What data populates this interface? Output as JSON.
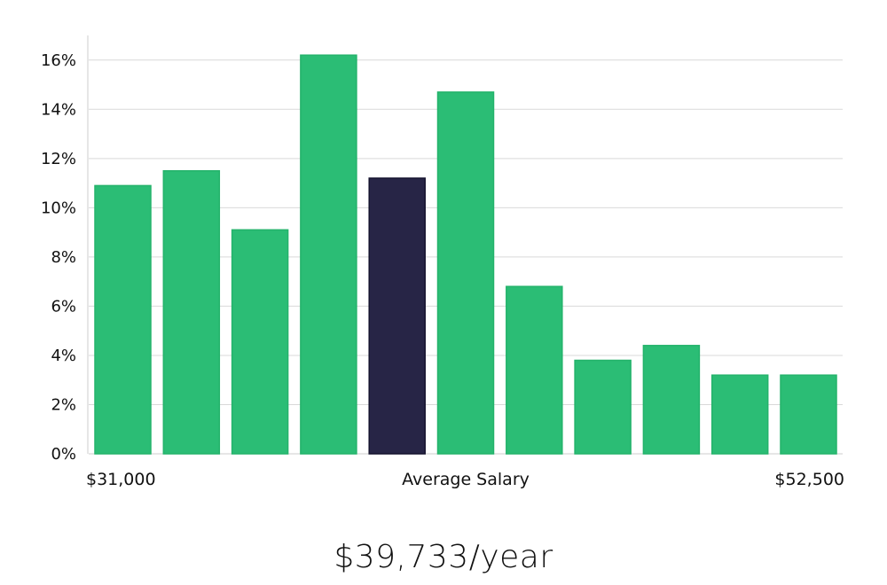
{
  "chart_data": {
    "type": "bar",
    "categories": [
      "1",
      "2",
      "3",
      "4",
      "5",
      "6",
      "7",
      "8",
      "9",
      "10",
      "11"
    ],
    "values": [
      10.9,
      11.5,
      9.1,
      16.2,
      11.2,
      14.7,
      6.8,
      3.8,
      4.4,
      3.2,
      3.2
    ],
    "highlight_index": 4,
    "ylim": [
      0,
      17
    ],
    "yticks": [
      0,
      2,
      4,
      6,
      8,
      10,
      12,
      14,
      16
    ],
    "ytick_labels": [
      "0%",
      "2%",
      "4%",
      "6%",
      "8%",
      "10%",
      "12%",
      "14%",
      "16%"
    ],
    "x_left_label": "$31,000",
    "x_center_label": "Average Salary",
    "x_right_label": "$52,500",
    "grid": true,
    "colors": {
      "bar": "#2bbd75",
      "bar_stroke": "#24b36b",
      "highlight": "#272546",
      "grid": "#d9d9d9",
      "axis": "#cccccc"
    }
  },
  "summary": {
    "average_salary": "$39,733/year"
  }
}
